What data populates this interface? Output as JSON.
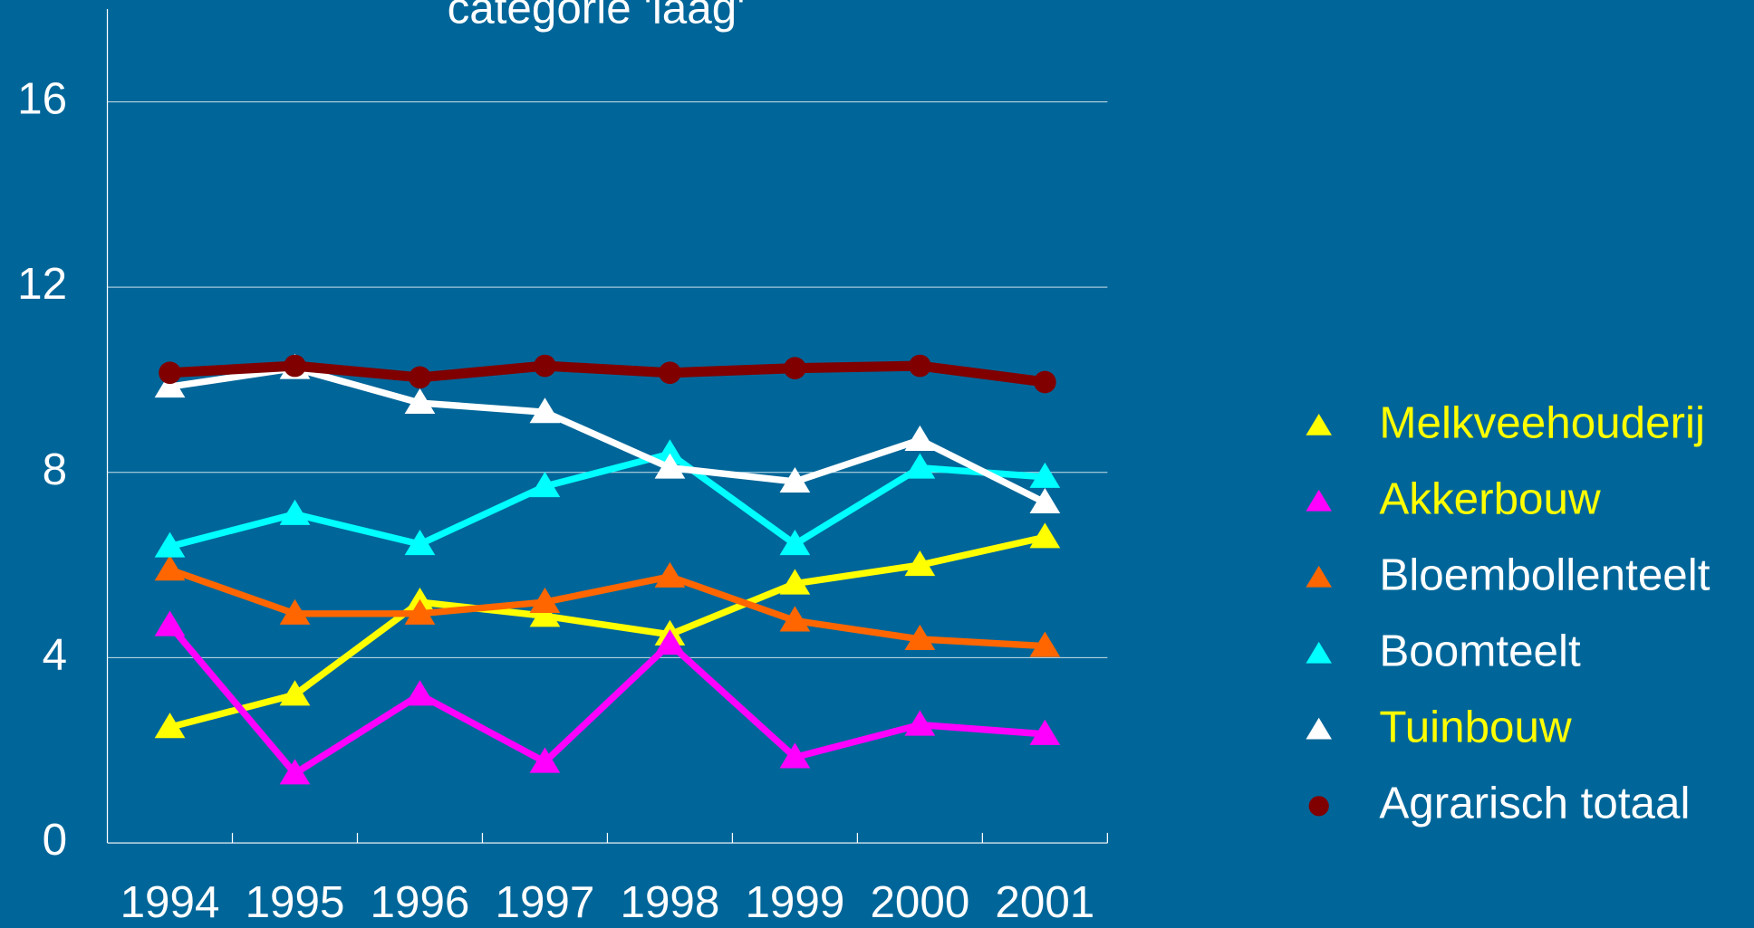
{
  "chart_data": {
    "type": "line",
    "title": "categorie 'laag'",
    "categories": [
      "1994",
      "1995",
      "1996",
      "1997",
      "1998",
      "1999",
      "2000",
      "2001"
    ],
    "ylim": [
      0,
      16
    ],
    "yticks": [
      0,
      4,
      8,
      12,
      16
    ],
    "grid": true,
    "legend": "right",
    "series": [
      {
        "name": "Melkveehouderij",
        "color": "#ffff00",
        "label_color": "#ffff00",
        "marker": "triangle",
        "values": [
          2.5,
          3.2,
          5.2,
          4.9,
          4.5,
          5.6,
          6.0,
          6.6
        ]
      },
      {
        "name": "Akkerbouw",
        "color": "#ff00ff",
        "label_color": "#ffff00",
        "marker": "triangle",
        "values": [
          4.7,
          1.5,
          3.2,
          1.75,
          4.3,
          1.85,
          2.55,
          2.35
        ]
      },
      {
        "name": "Bloembollenteelt",
        "color": "#ff6600",
        "label_color": "#ffffff",
        "marker": "triangle",
        "values": [
          5.9,
          4.95,
          4.95,
          5.2,
          5.75,
          4.8,
          4.4,
          4.25
        ]
      },
      {
        "name": "Boomteelt",
        "color": "#00ffff",
        "label_color": "#ffffff",
        "marker": "triangle",
        "values": [
          6.4,
          7.1,
          6.45,
          7.7,
          8.4,
          6.45,
          8.1,
          7.9
        ]
      },
      {
        "name": "Tuinbouw",
        "color": "#ffffff",
        "label_color": "#ffff00",
        "marker": "triangle",
        "values": [
          9.85,
          10.25,
          9.5,
          9.3,
          8.1,
          7.8,
          8.7,
          7.35
        ]
      },
      {
        "name": "Agrarisch totaal",
        "color": "#800000",
        "label_color": "#ffffff",
        "marker": "circle",
        "values": [
          10.15,
          10.3,
          10.05,
          10.3,
          10.15,
          10.25,
          10.3,
          9.95
        ]
      }
    ]
  }
}
